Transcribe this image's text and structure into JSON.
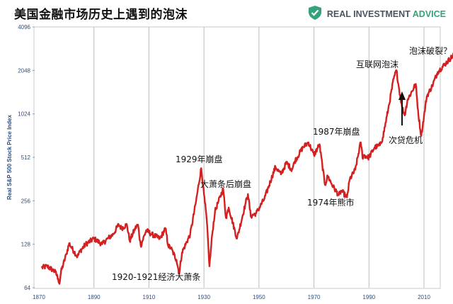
{
  "header": {
    "title": "美国金融市场历史上遇到的泡沫",
    "brand_name": "REAL INVESTMENT",
    "brand_accent": "ADVICE",
    "logo_icon": "shield-check-icon",
    "brand_color": "#35a37a"
  },
  "chart_data": {
    "type": "line",
    "title": "美国金融市场历史上遇到的泡沫",
    "ylabel": "Real S&P 500 Stock Price Index",
    "xlabel": "",
    "xlim": [
      1870,
      2022
    ],
    "ylim_log2": [
      6,
      12
    ],
    "line_color": "#d42020",
    "grid": "vertical",
    "x_ticks": [
      1870,
      1890,
      1910,
      1930,
      1950,
      1970,
      1990,
      2010
    ],
    "y_ticks": [
      64,
      128,
      256,
      512,
      1024,
      2048,
      4096
    ],
    "series": [
      {
        "name": "Real S&P 500",
        "x": [
          1871,
          1873,
          1875,
          1876,
          1877,
          1877.5,
          1878,
          1880,
          1881,
          1882,
          1884,
          1885,
          1887,
          1890,
          1893,
          1895,
          1897,
          1899,
          1900,
          1902,
          1903,
          1905,
          1906,
          1907,
          1909,
          1911,
          1914,
          1916,
          1917,
          1918,
          1920,
          1921,
          1922,
          1925,
          1927,
          1929,
          1930,
          1931,
          1932,
          1933,
          1934,
          1935,
          1937,
          1938,
          1939,
          1942,
          1945,
          1946,
          1947,
          1949,
          1952,
          1956,
          1958,
          1960,
          1962,
          1963,
          1966,
          1968,
          1970,
          1972,
          1974,
          1975,
          1977,
          1979,
          1980,
          1982,
          1983,
          1985,
          1987,
          1987.8,
          1988,
          1990,
          1992,
          1994,
          1995,
          1997,
          1999,
          2000,
          2001,
          2002,
          2003,
          2004,
          2007,
          2008,
          2009,
          2011,
          2013,
          2015,
          2018,
          2021
        ],
        "values": [
          88,
          90,
          85,
          82,
          74,
          68,
          82,
          110,
          130,
          120,
          105,
          115,
          128,
          140,
          128,
          140,
          150,
          175,
          165,
          175,
          135,
          165,
          175,
          125,
          160,
          150,
          140,
          165,
          125,
          120,
          100,
          80,
          112,
          150,
          245,
          430,
          285,
          190,
          90,
          150,
          215,
          245,
          310,
          195,
          230,
          140,
          240,
          285,
          200,
          210,
          265,
          440,
          390,
          470,
          420,
          480,
          600,
          650,
          530,
          630,
          330,
          380,
          320,
          280,
          300,
          270,
          360,
          420,
          650,
          500,
          530,
          510,
          600,
          620,
          700,
          1100,
          1800,
          2050,
          1500,
          1150,
          1000,
          1280,
          1650,
          1000,
          720,
          1350,
          1600,
          2000,
          2300,
          2650
        ]
      }
    ],
    "annotations": [
      {
        "key": "crash1920",
        "text": "1920-1921经济大萧条"
      },
      {
        "key": "crash1929",
        "text": "1929年崩盘"
      },
      {
        "key": "depression",
        "text": "大萧条后崩盘"
      },
      {
        "key": "bear1974",
        "text": "1974年熊市"
      },
      {
        "key": "crash1987",
        "text": "1987年崩盘"
      },
      {
        "key": "dotcom",
        "text": "互联网泡沫"
      },
      {
        "key": "subprime",
        "text": "次贷危机"
      },
      {
        "key": "next",
        "text": "泡沫破裂？"
      }
    ]
  }
}
